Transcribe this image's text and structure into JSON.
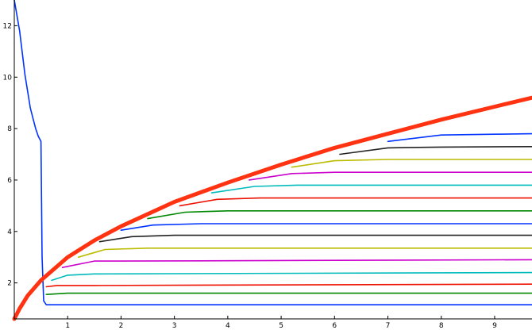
{
  "chart_data": {
    "type": "line",
    "title": "",
    "xlabel": "",
    "ylabel": "",
    "xlim": [
      0,
      9.7
    ],
    "ylim": [
      0.6,
      13.0
    ],
    "grid": false,
    "x_ticks": [
      1,
      2,
      3,
      4,
      5,
      6,
      7,
      8,
      9
    ],
    "y_ticks": [
      2,
      4,
      6,
      8,
      10,
      12
    ],
    "series": [
      {
        "color": "#0033ff",
        "points": [
          [
            0.0,
            13.0
          ],
          [
            0.1,
            11.8
          ],
          [
            0.2,
            10.1
          ],
          [
            0.3,
            8.8
          ],
          [
            0.35,
            8.4
          ],
          [
            0.4,
            8.0
          ],
          [
            0.45,
            7.7
          ],
          [
            0.5,
            7.5
          ],
          [
            0.52,
            3.0
          ],
          [
            0.55,
            1.3
          ],
          [
            0.6,
            1.15
          ],
          [
            0.9,
            1.15
          ],
          [
            2.0,
            1.15
          ],
          [
            5.0,
            1.15
          ],
          [
            9.7,
            1.15
          ]
        ]
      },
      {
        "color": "#008800",
        "points": [
          [
            0.6,
            1.55
          ],
          [
            1.0,
            1.6
          ],
          [
            3.0,
            1.6
          ],
          [
            9.7,
            1.6
          ]
        ]
      },
      {
        "color": "#ee1100",
        "points": [
          [
            0.6,
            1.85
          ],
          [
            0.8,
            1.9
          ],
          [
            1.5,
            1.9
          ],
          [
            9.7,
            1.95
          ]
        ]
      },
      {
        "color": "#00bbbb",
        "points": [
          [
            0.7,
            2.1
          ],
          [
            1.0,
            2.3
          ],
          [
            1.5,
            2.35
          ],
          [
            9.7,
            2.4
          ]
        ]
      },
      {
        "color": "#cc00cc",
        "points": [
          [
            0.9,
            2.6
          ],
          [
            1.5,
            2.85
          ],
          [
            2.0,
            2.85
          ],
          [
            9.7,
            2.9
          ]
        ]
      },
      {
        "color": "#bbbb00",
        "points": [
          [
            1.2,
            3.0
          ],
          [
            1.7,
            3.3
          ],
          [
            2.5,
            3.35
          ],
          [
            9.7,
            3.35
          ]
        ]
      },
      {
        "color": "#222222",
        "points": [
          [
            1.6,
            3.6
          ],
          [
            2.2,
            3.8
          ],
          [
            3.0,
            3.85
          ],
          [
            9.7,
            3.85
          ]
        ]
      },
      {
        "color": "#0033ff",
        "points": [
          [
            2.0,
            4.05
          ],
          [
            2.6,
            4.25
          ],
          [
            3.5,
            4.3
          ],
          [
            9.7,
            4.3
          ]
        ]
      },
      {
        "color": "#008800",
        "points": [
          [
            2.5,
            4.5
          ],
          [
            3.2,
            4.75
          ],
          [
            4.0,
            4.8
          ],
          [
            9.7,
            4.8
          ]
        ]
      },
      {
        "color": "#ee1100",
        "points": [
          [
            3.1,
            5.0
          ],
          [
            3.8,
            5.25
          ],
          [
            4.6,
            5.3
          ],
          [
            9.7,
            5.3
          ]
        ]
      },
      {
        "color": "#00bbbb",
        "points": [
          [
            3.7,
            5.5
          ],
          [
            4.5,
            5.75
          ],
          [
            5.3,
            5.8
          ],
          [
            9.7,
            5.8
          ]
        ]
      },
      {
        "color": "#cc00cc",
        "points": [
          [
            4.4,
            6.0
          ],
          [
            5.2,
            6.25
          ],
          [
            6.0,
            6.3
          ],
          [
            9.7,
            6.3
          ]
        ]
      },
      {
        "color": "#bbbb00",
        "points": [
          [
            5.2,
            6.5
          ],
          [
            6.0,
            6.75
          ],
          [
            7.0,
            6.8
          ],
          [
            9.7,
            6.8
          ]
        ]
      },
      {
        "color": "#222222",
        "points": [
          [
            6.1,
            7.0
          ],
          [
            7.0,
            7.25
          ],
          [
            8.0,
            7.28
          ],
          [
            9.7,
            7.3
          ]
        ]
      },
      {
        "color": "#0033ff",
        "points": [
          [
            7.0,
            7.5
          ],
          [
            8.0,
            7.75
          ],
          [
            9.0,
            7.78
          ],
          [
            9.7,
            7.8
          ]
        ]
      },
      {
        "color": "#ff3311",
        "width": 5,
        "points": [
          [
            0.0,
            0.6
          ],
          [
            0.1,
            1.0
          ],
          [
            0.25,
            1.5
          ],
          [
            0.5,
            2.1
          ],
          [
            1.0,
            3.0
          ],
          [
            1.5,
            3.65
          ],
          [
            2.0,
            4.2
          ],
          [
            3.0,
            5.15
          ],
          [
            4.0,
            5.9
          ],
          [
            5.0,
            6.6
          ],
          [
            6.0,
            7.25
          ],
          [
            7.0,
            7.8
          ],
          [
            8.0,
            8.35
          ],
          [
            9.0,
            8.85
          ],
          [
            9.7,
            9.2
          ]
        ]
      }
    ]
  }
}
